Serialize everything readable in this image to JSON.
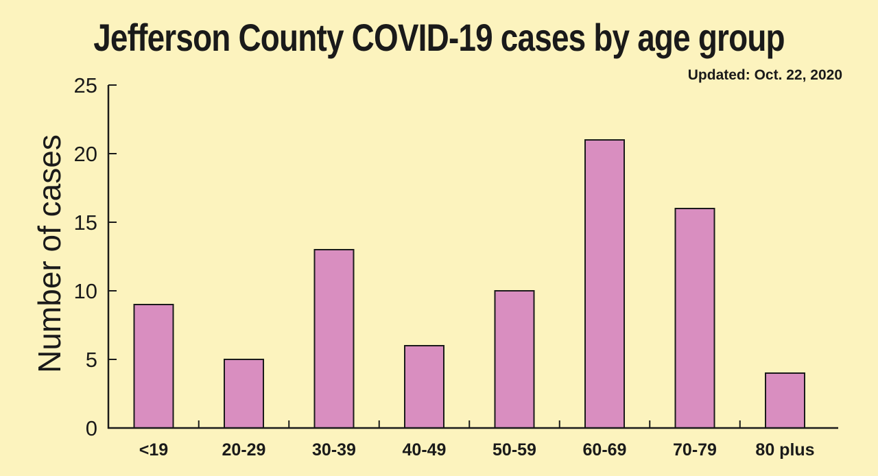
{
  "chart_data": {
    "type": "bar",
    "title": "Jefferson County COVID-19 cases by age group",
    "subtitle": "Updated: Oct. 22, 2020",
    "xlabel": "",
    "ylabel": "Number of cases",
    "categories": [
      "<19",
      "20-29",
      "30-39",
      "40-49",
      "50-59",
      "60-69",
      "70-79",
      "80 plus"
    ],
    "values": [
      9,
      5,
      13,
      6,
      10,
      21,
      16,
      4
    ],
    "ylim": [
      0,
      25
    ],
    "yticks": [
      0,
      5,
      10,
      15,
      20,
      25
    ],
    "grid": false,
    "colors": {
      "bar": "#D98EC0",
      "background": "#FCF3BE",
      "axis": "#1a1a1a"
    }
  }
}
